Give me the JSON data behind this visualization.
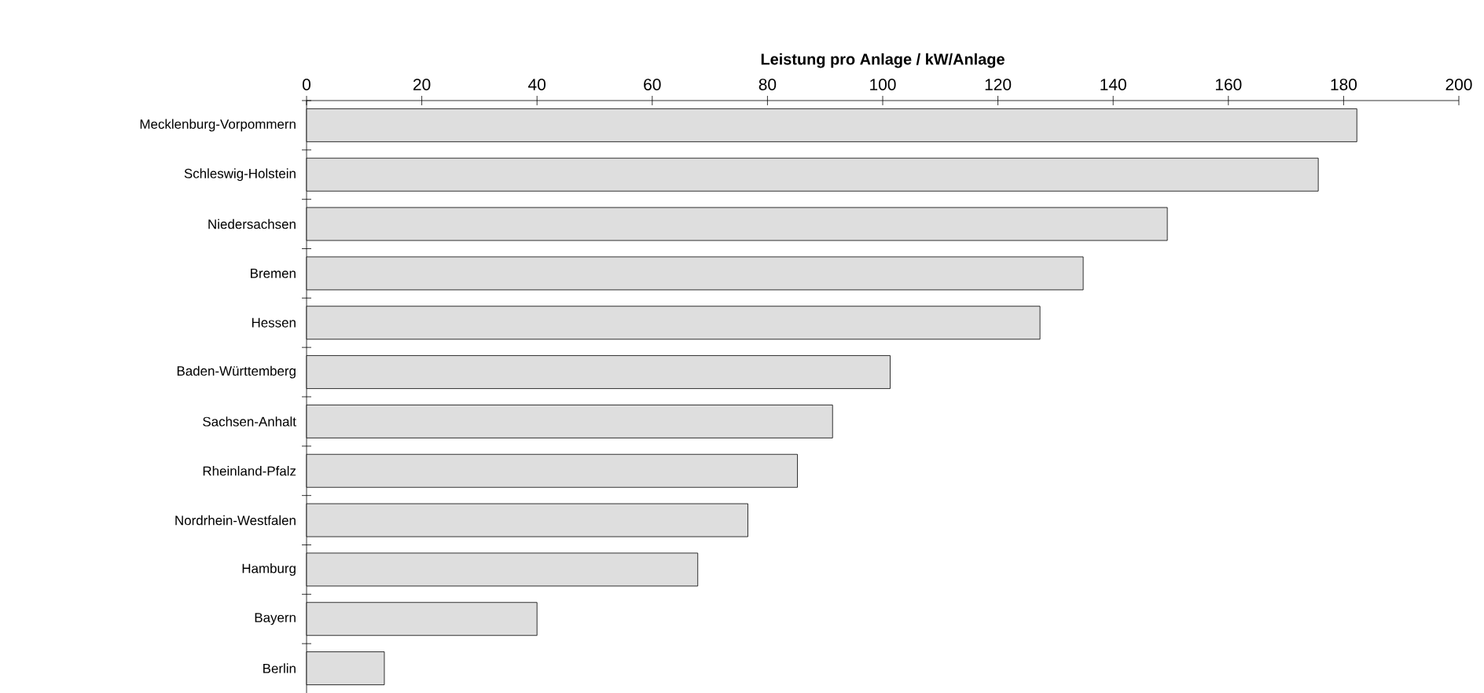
{
  "chart_data": {
    "type": "bar",
    "orientation": "horizontal",
    "xlabel": "Leistung pro Anlage / kW/Anlage",
    "categories": [
      "Mecklenburg-Vorpommern",
      "Schleswig-Holstein",
      "Niedersachsen",
      "Bremen",
      "Hessen",
      "Baden-Württemberg",
      "Sachsen-Anhalt",
      "Rheinland-Pfalz",
      "Nordrhein-Westfalen",
      "Hamburg",
      "Bayern",
      "Berlin"
    ],
    "values": [
      182.3,
      175.6,
      149.4,
      134.8,
      127.3,
      101.3,
      91.3,
      85.2,
      76.6,
      67.9,
      40.0,
      13.5
    ],
    "color": "#dedede",
    "xlim": [
      0,
      200
    ],
    "xticks": [
      0,
      20,
      40,
      60,
      80,
      100,
      120,
      140,
      160,
      180,
      200
    ]
  }
}
